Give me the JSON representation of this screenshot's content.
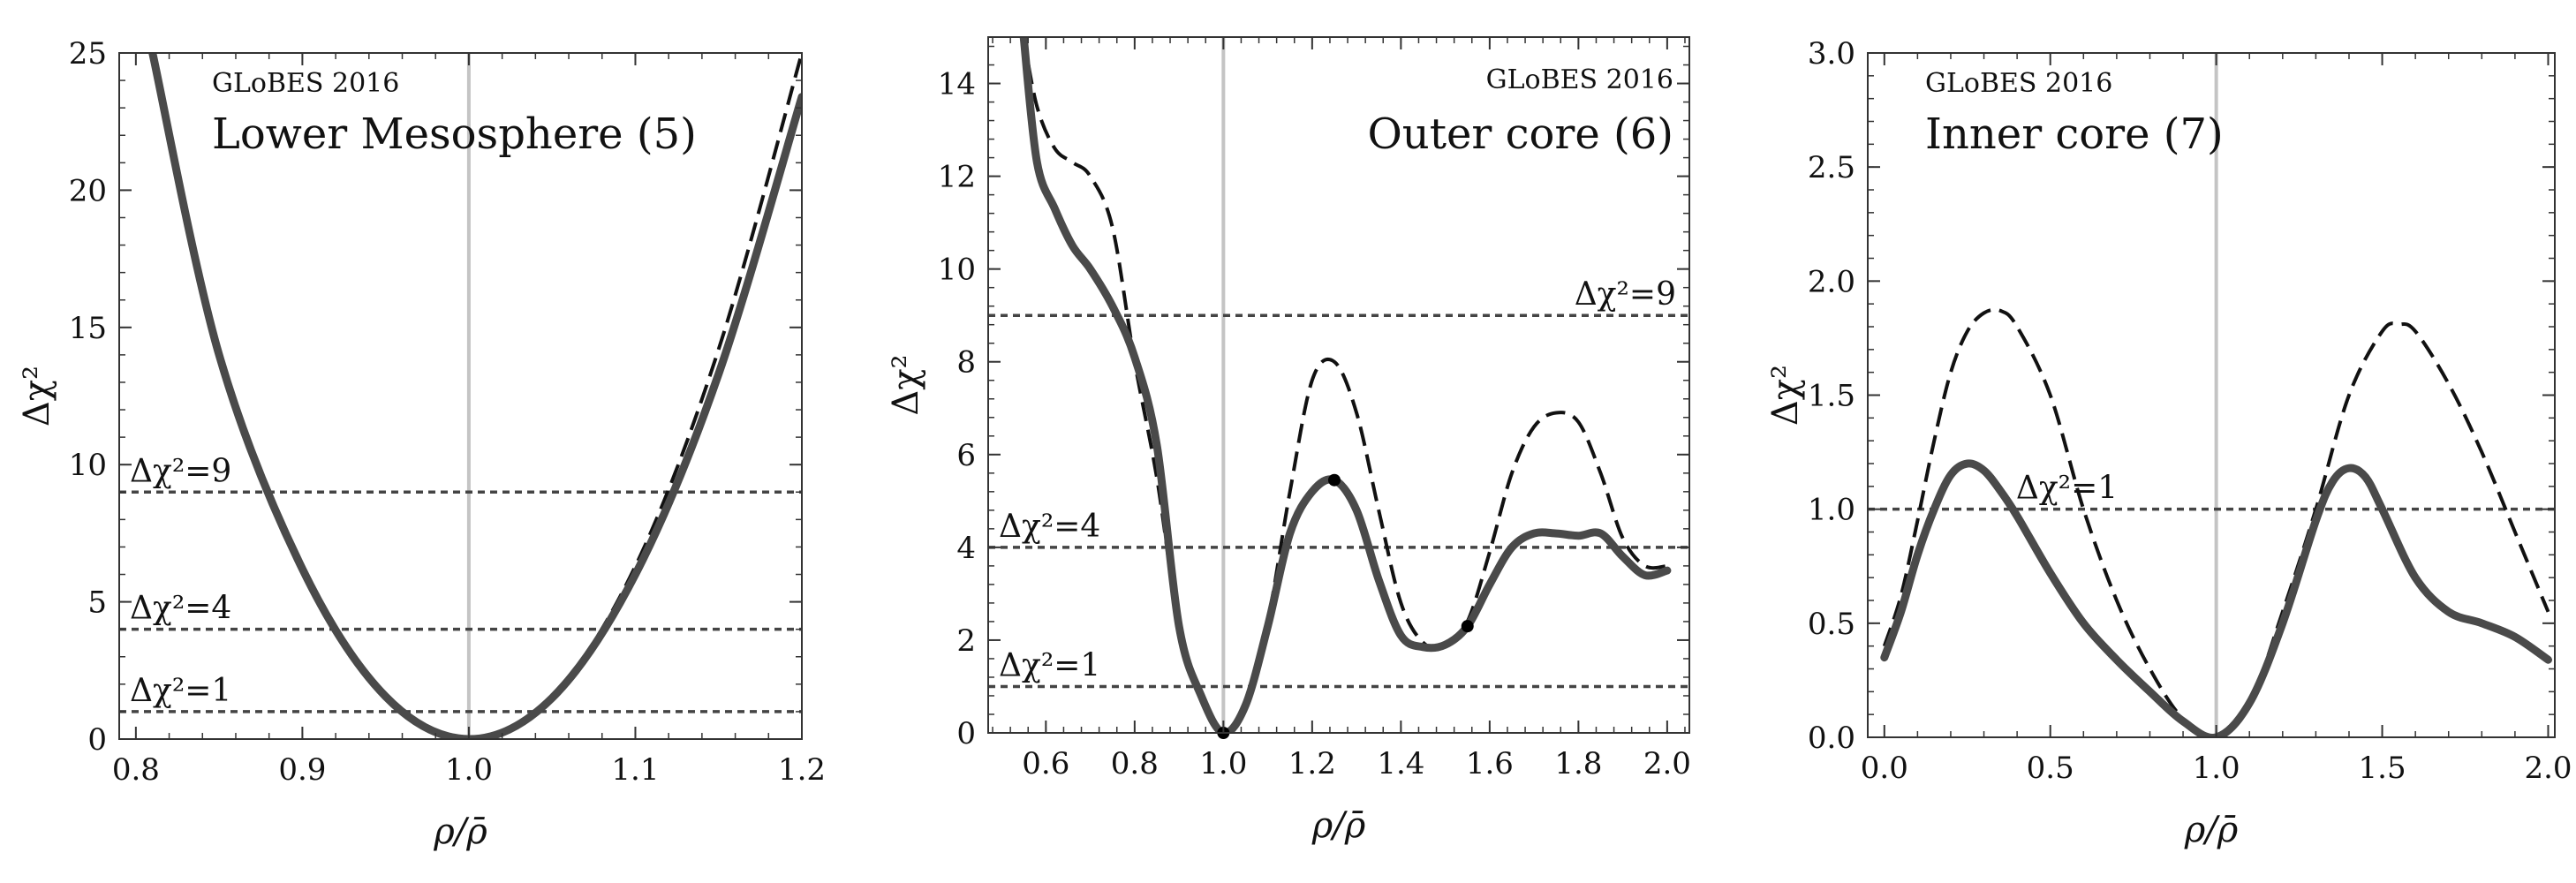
{
  "chart_data": [
    {
      "type": "line",
      "title": "Lower Mesosphere (5)",
      "watermark": "GLoBES 2016",
      "xlabel": "ρ/ρ̄",
      "ylabel": "Δχ²",
      "xlim": [
        0.79,
        1.2
      ],
      "ylim": [
        0,
        25
      ],
      "xticks": [
        0.8,
        0.9,
        1.0,
        1.1,
        1.2
      ],
      "xtick_labels": [
        "0.8",
        "0.9",
        "1.0",
        "1.1",
        "1.2"
      ],
      "yticks": [
        0,
        5,
        10,
        15,
        20,
        25
      ],
      "ytick_labels": [
        "0",
        "5",
        "10",
        "15",
        "20",
        "25"
      ],
      "vline_x": 1.0,
      "reference_lines": [
        {
          "y": 9,
          "label": "Δχ²=9"
        },
        {
          "y": 4,
          "label": "Δχ²=4"
        },
        {
          "y": 1,
          "label": "Δχ²=1"
        }
      ],
      "series": [
        {
          "style": "solid",
          "x": [
            0.81,
            0.85,
            0.9,
            0.95,
            1.0,
            1.05,
            1.1,
            1.15,
            1.2
          ],
          "y": [
            25.0,
            14.0,
            6.2,
            1.55,
            0.0,
            1.5,
            6.0,
            13.3,
            23.4
          ]
        },
        {
          "style": "dashed",
          "x": [
            0.81,
            0.85,
            0.9,
            0.95,
            1.0,
            1.05,
            1.1,
            1.15,
            1.2
          ],
          "y": [
            25.0,
            14.1,
            6.25,
            1.55,
            0.0,
            1.55,
            6.3,
            14.2,
            25.0
          ]
        }
      ],
      "points": []
    },
    {
      "type": "line",
      "title": "Outer core (6)",
      "watermark": "GLoBES 2016",
      "xlabel": "ρ/ρ̄",
      "ylabel": "Δχ²",
      "xlim": [
        0.47,
        2.05
      ],
      "ylim": [
        0,
        15
      ],
      "xticks": [
        0.6,
        0.8,
        1.0,
        1.2,
        1.4,
        1.6,
        1.8,
        2.0
      ],
      "xtick_labels": [
        "0.6",
        "0.8",
        "1.0",
        "1.2",
        "1.4",
        "1.6",
        "1.8",
        "2.0"
      ],
      "yticks": [
        0,
        2,
        4,
        6,
        8,
        10,
        12,
        14
      ],
      "ytick_labels": [
        "0",
        "2",
        "4",
        "6",
        "8",
        "10",
        "12",
        "14"
      ],
      "vline_x": 1.0,
      "reference_lines": [
        {
          "y": 9,
          "label": "Δχ²=9",
          "label_side": "right"
        },
        {
          "y": 4,
          "label": "Δχ²=4"
        },
        {
          "y": 1,
          "label": "Δχ²=1"
        }
      ],
      "series": [
        {
          "style": "solid",
          "x": [
            0.55,
            0.58,
            0.62,
            0.66,
            0.7,
            0.75,
            0.8,
            0.85,
            0.9,
            0.95,
            1.0,
            1.05,
            1.1,
            1.15,
            1.2,
            1.25,
            1.3,
            1.35,
            1.4,
            1.45,
            1.5,
            1.55,
            1.6,
            1.65,
            1.7,
            1.75,
            1.8,
            1.85,
            1.9,
            1.95,
            2.0
          ],
          "y": [
            15.0,
            12.3,
            11.3,
            10.5,
            10.0,
            9.2,
            8.1,
            6.2,
            2.3,
            0.8,
            0.0,
            0.6,
            2.3,
            4.3,
            5.2,
            5.45,
            4.8,
            3.3,
            2.1,
            1.85,
            1.9,
            2.3,
            3.2,
            4.0,
            4.3,
            4.3,
            4.25,
            4.3,
            3.8,
            3.4,
            3.5
          ]
        },
        {
          "style": "dashed",
          "x": [
            0.55,
            0.58,
            0.62,
            0.66,
            0.7,
            0.75,
            0.8,
            0.85,
            0.9,
            0.95,
            1.0,
            1.05,
            1.1,
            1.15,
            1.2,
            1.25,
            1.3,
            1.35,
            1.4,
            1.45,
            1.5,
            1.55,
            1.6,
            1.65,
            1.7,
            1.75,
            1.8,
            1.85,
            1.9,
            1.95,
            2.0
          ],
          "y": [
            15.0,
            13.5,
            12.6,
            12.3,
            12.0,
            10.9,
            8.0,
            5.5,
            2.3,
            0.8,
            0.0,
            0.6,
            2.4,
            5.2,
            7.6,
            8.0,
            6.9,
            4.8,
            2.8,
            1.95,
            1.85,
            2.4,
            3.9,
            5.6,
            6.6,
            6.9,
            6.7,
            5.6,
            4.2,
            3.6,
            3.6
          ]
        }
      ],
      "points": [
        {
          "x": 1.0,
          "y": 0.0
        },
        {
          "x": 1.25,
          "y": 5.45
        },
        {
          "x": 1.55,
          "y": 2.3
        }
      ]
    },
    {
      "type": "line",
      "title": "Inner core (7)",
      "watermark": "GLoBES 2016",
      "xlabel": "ρ/ρ̄",
      "ylabel": "Δχ²",
      "xlim": [
        -0.05,
        2.02
      ],
      "ylim": [
        0,
        3
      ],
      "xticks": [
        0.0,
        0.5,
        1.0,
        1.5,
        2.0
      ],
      "xtick_labels": [
        "0.0",
        "0.5",
        "1.0",
        "1.5",
        "2.0"
      ],
      "yticks": [
        0.0,
        0.5,
        1.0,
        1.5,
        2.0,
        2.5,
        3.0
      ],
      "ytick_labels": [
        "0.0",
        "0.5",
        "1.0",
        "1.5",
        "2.0",
        "2.5",
        "3.0"
      ],
      "vline_x": 1.0,
      "reference_lines": [
        {
          "y": 1,
          "label": "Δχ²=1",
          "label_side": "center"
        }
      ],
      "series": [
        {
          "style": "solid",
          "x": [
            0.0,
            0.05,
            0.1,
            0.15,
            0.2,
            0.25,
            0.3,
            0.35,
            0.4,
            0.5,
            0.6,
            0.7,
            0.8,
            0.9,
            1.0,
            1.1,
            1.2,
            1.3,
            1.35,
            1.4,
            1.45,
            1.5,
            1.6,
            1.7,
            1.8,
            1.9,
            2.0
          ],
          "y": [
            0.35,
            0.55,
            0.8,
            1.0,
            1.15,
            1.2,
            1.17,
            1.08,
            0.97,
            0.72,
            0.5,
            0.34,
            0.2,
            0.07,
            0.0,
            0.15,
            0.5,
            0.95,
            1.12,
            1.18,
            1.14,
            1.0,
            0.7,
            0.55,
            0.5,
            0.44,
            0.34
          ]
        },
        {
          "style": "dashed",
          "x": [
            0.0,
            0.05,
            0.1,
            0.15,
            0.2,
            0.25,
            0.3,
            0.35,
            0.4,
            0.5,
            0.6,
            0.7,
            0.8,
            0.9,
            1.0,
            1.1,
            1.2,
            1.3,
            1.4,
            1.5,
            1.55,
            1.6,
            1.7,
            1.8,
            1.9,
            2.0
          ],
          "y": [
            0.4,
            0.62,
            0.95,
            1.3,
            1.6,
            1.78,
            1.86,
            1.87,
            1.8,
            1.5,
            1.0,
            0.6,
            0.3,
            0.08,
            0.0,
            0.15,
            0.55,
            1.0,
            1.5,
            1.78,
            1.81,
            1.78,
            1.55,
            1.25,
            0.9,
            0.55
          ]
        }
      ],
      "points": []
    }
  ]
}
